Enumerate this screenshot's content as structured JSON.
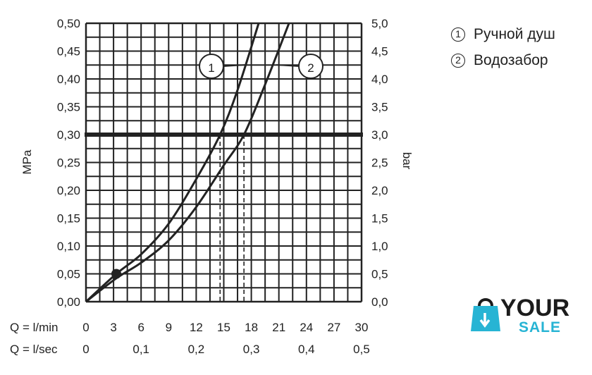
{
  "chart_data": {
    "type": "line",
    "y_left": {
      "label": "MPa",
      "ticks": [
        "0,00",
        "0,05",
        "0,10",
        "0,15",
        "0,20",
        "0,25",
        "0,30",
        "0,35",
        "0,40",
        "0,45",
        "0,50"
      ],
      "lim": [
        0,
        0.5
      ]
    },
    "y_right": {
      "label": "bar",
      "ticks": [
        "0,0",
        "0,5",
        "1,0",
        "1,5",
        "2,0",
        "2,5",
        "3,0",
        "3,5",
        "4,0",
        "4,5",
        "5,0"
      ],
      "lim": [
        0,
        5
      ]
    },
    "x_rows": [
      {
        "label": "Q = l/min",
        "ticks": [
          "0",
          "3",
          "6",
          "9",
          "12",
          "15",
          "18",
          "21",
          "24",
          "27",
          "30"
        ],
        "lim": [
          0,
          30
        ]
      },
      {
        "label": "Q = l/sec",
        "ticks": [
          "0",
          "0,1",
          "0,2",
          "0,3",
          "0,4",
          "0,5"
        ]
      }
    ],
    "grid": true,
    "series": [
      {
        "name": "1",
        "x": [
          0,
          3.3,
          6,
          9,
          12,
          14.6,
          16.5,
          18.8
        ],
        "y": [
          0,
          0.05,
          0.085,
          0.14,
          0.22,
          0.3,
          0.38,
          0.5
        ]
      },
      {
        "name": "2",
        "x": [
          0,
          3.3,
          6,
          9,
          12,
          15,
          17.2,
          19.5,
          22.1
        ],
        "y": [
          0,
          0.042,
          0.07,
          0.11,
          0.17,
          0.245,
          0.3,
          0.39,
          0.5
        ]
      }
    ],
    "reference_line": {
      "y": 0.3
    },
    "marker_point": {
      "x": 3.3,
      "y": 0.05
    },
    "dashed_drops": [
      14.6,
      17.2
    ],
    "callouts": [
      "1",
      "2"
    ],
    "colors": {
      "line": "#222222",
      "grid": "#222222"
    }
  },
  "legend": {
    "items": [
      {
        "num": "1",
        "text": "Ручной душ"
      },
      {
        "num": "2",
        "text": "Водозабор"
      }
    ]
  },
  "logo": {
    "word1": "YOUR",
    "word2": "SALE",
    "colors": {
      "dark": "#1c1c1c",
      "accent": "#27b4d4"
    }
  }
}
